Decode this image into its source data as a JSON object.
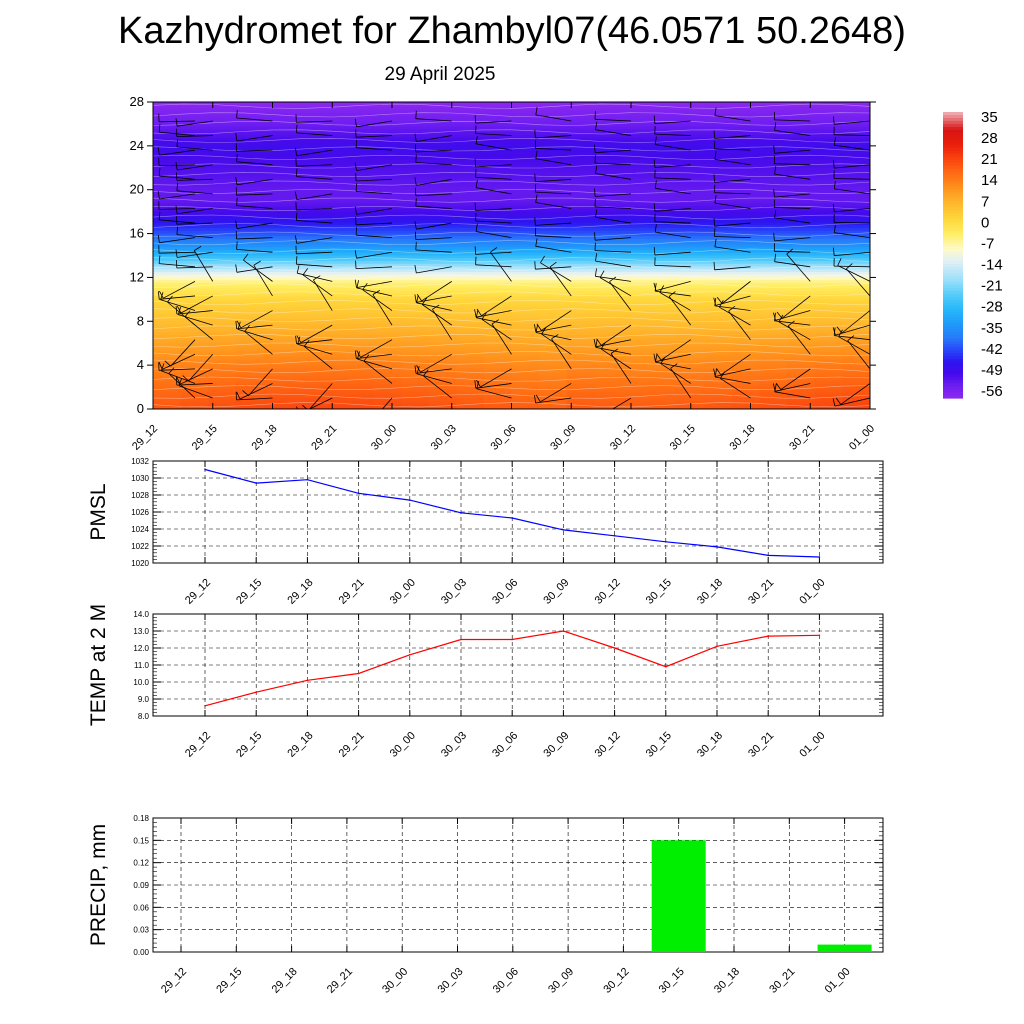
{
  "title": "Kazhydromet for Zhambyl07(46.0571 50.2648)",
  "subtitle": "29 April 2025",
  "time_labels": [
    "29_12",
    "29_15",
    "29_18",
    "29_21",
    "30_00",
    "30_03",
    "30_06",
    "30_09",
    "30_12",
    "30_15",
    "30_18",
    "30_21",
    "01_00"
  ],
  "chart_data": [
    {
      "type": "heatmap",
      "x": [
        "29_12",
        "29_15",
        "29_18",
        "29_21",
        "30_00",
        "30_03",
        "30_06",
        "30_09",
        "30_12",
        "30_15",
        "30_18",
        "30_21",
        "01_00"
      ],
      "y_ticks": [
        0,
        4,
        8,
        12,
        16,
        20,
        24,
        28
      ],
      "ylim": [
        0,
        28
      ],
      "colorbar": {
        "labels": [
          "35",
          "28",
          "21",
          "14",
          "7",
          "0",
          "-7",
          "-14",
          "-21",
          "-28",
          "-35",
          "-42",
          "-49",
          "-56"
        ],
        "range": [
          -60,
          36
        ]
      },
      "profile": {
        "levels": [
          0,
          2,
          4,
          6,
          8,
          10,
          11.5,
          12.2,
          13,
          14,
          15,
          16,
          17,
          18,
          19,
          20,
          22,
          24,
          26,
          28
        ],
        "temps": [
          18,
          15,
          12,
          8,
          4,
          0,
          -6,
          -12,
          -20,
          -30,
          -37,
          -43,
          -48,
          -52,
          -55,
          -55,
          -53,
          -51,
          -56,
          -60
        ]
      },
      "wind_barbs": true
    },
    {
      "type": "line",
      "x": [
        "29_12",
        "29_15",
        "29_18",
        "29_21",
        "30_00",
        "30_03",
        "30_06",
        "30_09",
        "30_12",
        "30_15",
        "30_18",
        "30_21",
        "01_00"
      ],
      "values": [
        1031.0,
        1029.4,
        1029.8,
        1028.2,
        1027.4,
        1025.9,
        1025.3,
        1023.9,
        1023.2,
        1022.5,
        1021.9,
        1020.9,
        1020.7
      ],
      "ylabel": "PMSL",
      "ylim": [
        1020,
        1032
      ],
      "y_ticks": [
        "1020",
        "1022",
        "1024",
        "1026",
        "1028",
        "1030",
        "1032"
      ],
      "color": "#0000ff",
      "grid": true
    },
    {
      "type": "line",
      "x": [
        "29_12",
        "29_15",
        "29_18",
        "29_21",
        "30_00",
        "30_03",
        "30_06",
        "30_09",
        "30_12",
        "30_15",
        "30_18",
        "30_21",
        "01_00"
      ],
      "values": [
        8.6,
        9.4,
        10.1,
        10.5,
        11.6,
        12.5,
        12.5,
        13.0,
        12.0,
        10.9,
        12.1,
        12.7,
        12.75
      ],
      "ylabel": "TEMP at 2 M",
      "ylim": [
        8.0,
        14.0
      ],
      "y_ticks": [
        "8.0",
        "9.0",
        "10.0",
        "11.0",
        "12.0",
        "13.0",
        "14.0"
      ],
      "color": "#ff0000",
      "grid": true
    },
    {
      "type": "bar",
      "categories": [
        "29_12",
        "29_15",
        "29_18",
        "29_21",
        "30_00",
        "30_03",
        "30_06",
        "30_09",
        "30_12",
        "30_15",
        "30_18",
        "30_21",
        "01_00"
      ],
      "values": [
        0,
        0,
        0,
        0,
        0,
        0,
        0,
        0,
        0,
        0.15,
        0,
        0,
        0.01
      ],
      "ylabel": "PRECIP, mm",
      "ylim": [
        0,
        0.18
      ],
      "y_ticks": [
        "0.00",
        "0.03",
        "0.06",
        "0.09",
        "0.12",
        "0.15",
        "0.18"
      ],
      "color": "#00ee00",
      "grid": true
    }
  ]
}
